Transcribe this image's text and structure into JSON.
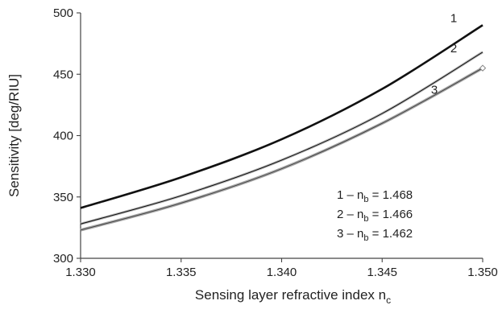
{
  "chart_data": {
    "type": "line",
    "title": "",
    "xlabel": "Sensing layer refractive index n",
    "xlabel_sub": "c",
    "ylabel": "Sensitivity [deg/RIU]",
    "xlim": [
      1.33,
      1.35
    ],
    "ylim": [
      300,
      500
    ],
    "xticks": [
      "1.330",
      "1.335",
      "1.340",
      "1.345",
      "1.350"
    ],
    "yticks": [
      "300",
      "350",
      "400",
      "450",
      "500"
    ],
    "grid": false,
    "legend_position": "bottom-right",
    "series": [
      {
        "name": "1",
        "legend_prefix": "1 – n",
        "legend_sub": "b",
        "legend_value": " = 1.468",
        "style": "thick-black",
        "x": [
          1.33,
          1.335,
          1.34,
          1.345,
          1.35
        ],
        "y": [
          341,
          366,
          397,
          438,
          490
        ]
      },
      {
        "name": "2",
        "legend_prefix": "2 – n",
        "legend_sub": "b",
        "legend_value": " = 1.466",
        "style": "thin-black",
        "x": [
          1.33,
          1.335,
          1.34,
          1.345,
          1.35
        ],
        "y": [
          328,
          351,
          380,
          418,
          468
        ]
      },
      {
        "name": "3",
        "legend_prefix": "3 – n",
        "legend_sub": "b",
        "legend_value": " = 1.462",
        "style": "gray-markers",
        "x": [
          1.33,
          1.335,
          1.34,
          1.345,
          1.35
        ],
        "y": [
          323,
          345,
          373,
          410,
          455
        ]
      }
    ]
  }
}
